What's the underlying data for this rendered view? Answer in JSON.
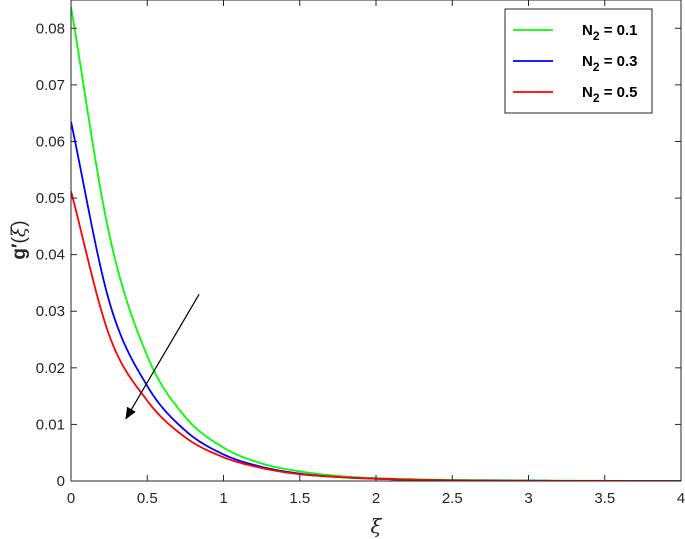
{
  "chart_data": {
    "type": "line",
    "xlabel": "ξ",
    "ylabel": {
      "main": "g",
      "prime": "′",
      "open": "(",
      "var": "ξ",
      "close": ")"
    },
    "xlim": [
      0,
      4
    ],
    "ylim": [
      0,
      0.085
    ],
    "xticks": [
      "0",
      "0.5",
      "1",
      "1.5",
      "2",
      "2.5",
      "3",
      "3.5",
      "4"
    ],
    "yticks": [
      "0",
      "0.01",
      "0.02",
      "0.03",
      "0.04",
      "0.05",
      "0.06",
      "0.07",
      "0.08"
    ],
    "grid": false,
    "legend_position": "top-right",
    "x": [
      0,
      0.25,
      0.5,
      0.75,
      1.0,
      1.25,
      1.5,
      1.75,
      2.0,
      2.5,
      3.0,
      3.5,
      4.0
    ],
    "series": [
      {
        "name": {
          "sym": "N",
          "sub": "2",
          "val": " = 0.1"
        },
        "color": "#00ff00",
        "values": [
          0.0838,
          0.0437,
          0.0221,
          0.0113,
          0.0059,
          0.0031,
          0.0017,
          0.0009,
          0.0005,
          0.0002,
          0.0001,
          3e-05,
          1e-05
        ]
      },
      {
        "name": {
          "sym": "N",
          "sub": "2",
          "val": " = 0.3"
        },
        "color": "#0000ff",
        "values": [
          0.0635,
          0.0318,
          0.0168,
          0.0089,
          0.0047,
          0.0025,
          0.0013,
          0.0007,
          0.0004,
          0.0001,
          4e-05,
          1e-05,
          0.0
        ]
      },
      {
        "name": {
          "sym": "N",
          "sub": "2",
          "val": " = 0.5"
        },
        "color": "#ff0000",
        "values": [
          0.0512,
          0.0258,
          0.0142,
          0.0077,
          0.0042,
          0.0023,
          0.0012,
          0.0007,
          0.0004,
          0.0001,
          3e-05,
          1e-05,
          0.0
        ]
      }
    ],
    "annotation": {
      "type": "arrow",
      "from": [
        0.84,
        0.033
      ],
      "to": [
        0.36,
        0.011
      ]
    }
  }
}
